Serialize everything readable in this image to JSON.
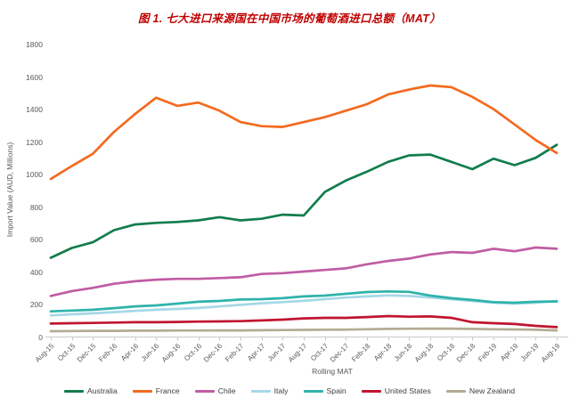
{
  "title": "图 1. 七大进口来源国在中国市场的葡萄酒进口总额（MAT）",
  "title_color": "#c00000",
  "chart_data": {
    "type": "line",
    "title": "图 1. 七大进口来源国在中国市场的葡萄酒进口总额（MAT）",
    "xlabel": "Rolling MAT",
    "ylabel": "Import Value (AUD, Millions)",
    "ylim": [
      0,
      1800
    ],
    "ytick_step": 200,
    "grid": false,
    "legend_position": "bottom",
    "x": [
      "Aug-15",
      "Oct-15",
      "Dec-15",
      "Feb-16",
      "Apr-16",
      "Jun-16",
      "Aug-16",
      "Oct-16",
      "Dec-16",
      "Feb-17",
      "Apr-17",
      "Jun-17",
      "Aug-17",
      "Oct-17",
      "Dec-17",
      "Feb-18",
      "Apr-18",
      "Jun-18",
      "Aug-18",
      "Oct-18",
      "Dec-18",
      "Feb-19",
      "Apr-19",
      "Jun-19",
      "Aug-19"
    ],
    "series": [
      {
        "name": "Australia",
        "color": "#117d4b",
        "values": [
          485,
          545,
          580,
          655,
          690,
          700,
          705,
          715,
          735,
          715,
          725,
          750,
          745,
          890,
          960,
          1015,
          1075,
          1115,
          1120,
          1075,
          1030,
          1095,
          1055,
          1100,
          1180
        ]
      },
      {
        "name": "France",
        "color": "#f36a1f",
        "values": [
          970,
          1050,
          1125,
          1260,
          1370,
          1470,
          1420,
          1440,
          1390,
          1320,
          1295,
          1290,
          1320,
          1350,
          1390,
          1430,
          1490,
          1520,
          1545,
          1535,
          1475,
          1400,
          1305,
          1210,
          1130
        ]
      },
      {
        "name": "Chile",
        "color": "#c05ca3",
        "values": [
          250,
          280,
          300,
          325,
          340,
          350,
          355,
          355,
          360,
          365,
          385,
          390,
          400,
          410,
          420,
          445,
          465,
          480,
          505,
          520,
          515,
          540,
          525,
          548,
          540
        ]
      },
      {
        "name": "Italy",
        "color": "#a5d8e8",
        "values": [
          130,
          137,
          143,
          150,
          158,
          165,
          170,
          176,
          185,
          195,
          205,
          212,
          220,
          230,
          240,
          247,
          253,
          250,
          240,
          230,
          219,
          208,
          203,
          208,
          220
        ]
      },
      {
        "name": "Spain",
        "color": "#2fb3ab",
        "values": [
          155,
          160,
          165,
          175,
          186,
          192,
          203,
          214,
          219,
          228,
          230,
          236,
          247,
          252,
          263,
          274,
          278,
          275,
          252,
          236,
          225,
          212,
          208,
          214,
          216
        ]
      },
      {
        "name": "United States",
        "color": "#c0152f",
        "values": [
          80,
          82,
          84,
          86,
          88,
          88,
          90,
          92,
          93,
          95,
          99,
          104,
          112,
          115,
          115,
          120,
          126,
          122,
          124,
          115,
          88,
          82,
          77,
          66,
          58
        ]
      },
      {
        "name": "New Zealand",
        "color": "#b3ab94",
        "values": [
          33,
          34,
          35,
          35,
          36,
          36,
          37,
          37,
          38,
          38,
          39,
          40,
          41,
          42,
          43,
          45,
          47,
          48,
          49,
          49,
          47,
          45,
          44,
          42,
          38
        ]
      }
    ],
    "axis_color": "#c9c9c9"
  }
}
